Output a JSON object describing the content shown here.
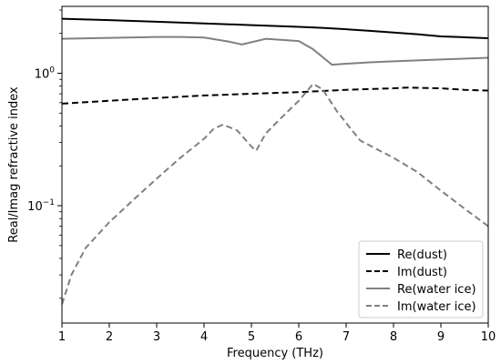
{
  "chart_data": {
    "type": "line",
    "title": "",
    "xlabel": "Frequency (THz)",
    "ylabel": "Real/Imag refractive index",
    "xlim": [
      1,
      10
    ],
    "ylim": [
      0.013,
      3.2
    ],
    "yscale": "log",
    "grid": false,
    "legend_position": "lower-right",
    "x_ticks": [
      "1",
      "2",
      "3",
      "4",
      "5",
      "6",
      "7",
      "8",
      "9",
      "10"
    ],
    "y_ticks": [
      {
        "value": 0.1,
        "base": "10",
        "exp": "−1"
      },
      {
        "value": 1,
        "base": "10",
        "exp": "0"
      }
    ],
    "series": [
      {
        "name": "Re(dust)",
        "color": "#000000",
        "dash": "solid",
        "x": [
          1,
          2,
          3,
          4,
          5,
          6,
          6.5,
          7,
          7.5,
          8,
          8.5,
          9,
          9.5,
          10
        ],
        "y": [
          2.58,
          2.52,
          2.45,
          2.38,
          2.31,
          2.24,
          2.2,
          2.15,
          2.09,
          2.03,
          1.97,
          1.9,
          1.87,
          1.84
        ]
      },
      {
        "name": "Im(dust)",
        "color": "#000000",
        "dash": "dashed",
        "x": [
          1,
          2,
          3,
          4,
          5,
          6,
          7,
          8,
          8.3,
          9,
          9.5,
          10
        ],
        "y": [
          0.59,
          0.62,
          0.65,
          0.68,
          0.7,
          0.72,
          0.75,
          0.77,
          0.78,
          0.77,
          0.75,
          0.74
        ]
      },
      {
        "name": "Re(water ice)",
        "color": "#808080",
        "dash": "solid",
        "x": [
          1,
          2,
          3,
          3.5,
          4,
          4.5,
          4.8,
          5.3,
          6,
          6.3,
          6.7,
          7,
          7.5,
          8,
          9,
          10
        ],
        "y": [
          1.82,
          1.85,
          1.88,
          1.88,
          1.86,
          1.74,
          1.65,
          1.82,
          1.75,
          1.52,
          1.16,
          1.18,
          1.21,
          1.23,
          1.27,
          1.31
        ]
      },
      {
        "name": "Im(water ice)",
        "color": "#808080",
        "dash": "dashed",
        "x": [
          1,
          1.2,
          1.5,
          2,
          2.5,
          3,
          3.5,
          4,
          4.2,
          4.4,
          4.7,
          5,
          5.1,
          5.3,
          5.6,
          6,
          6.3,
          6.5,
          6.8,
          7.1,
          7.3,
          8,
          8.5,
          9,
          9.5,
          10
        ],
        "y": [
          0.018,
          0.03,
          0.048,
          0.075,
          0.11,
          0.16,
          0.23,
          0.32,
          0.38,
          0.41,
          0.37,
          0.28,
          0.26,
          0.35,
          0.45,
          0.62,
          0.83,
          0.76,
          0.52,
          0.38,
          0.31,
          0.23,
          0.18,
          0.13,
          0.095,
          0.07
        ]
      }
    ]
  }
}
